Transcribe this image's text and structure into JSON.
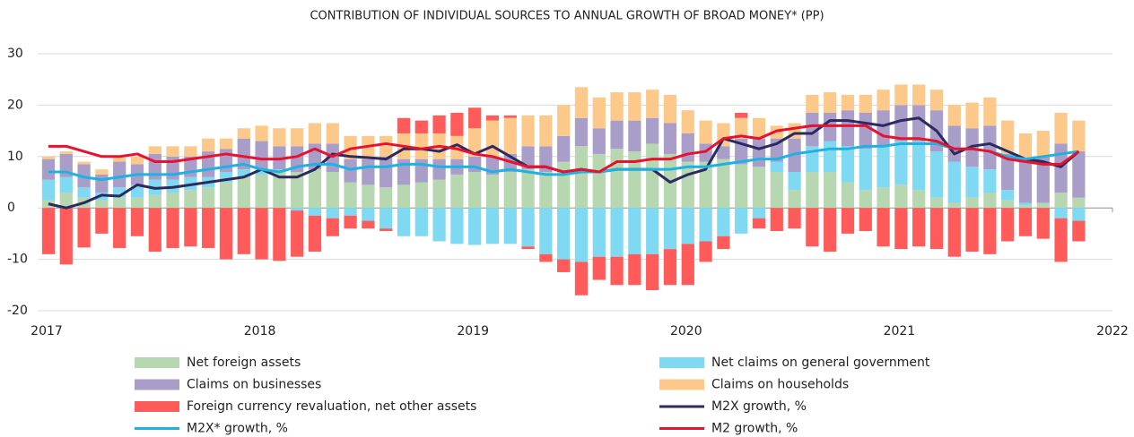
{
  "chart_data": {
    "type": "stacked_bar_line",
    "title": "CONTRIBUTION OF INDIVIDUAL SOURCES TO ANNUAL GROWTH OF BROAD MONEY* (PP)",
    "categories": [
      null,
      null,
      null,
      null,
      null,
      null,
      null,
      null,
      null,
      null,
      null,
      null,
      null,
      null,
      null,
      null,
      null,
      null,
      null,
      null,
      null,
      null,
      null,
      null,
      null,
      null,
      null,
      null,
      null,
      null,
      null,
      null,
      null,
      null,
      null,
      null,
      null,
      null,
      null,
      null,
      null,
      null,
      null,
      null,
      null,
      null,
      null,
      null,
      null,
      null,
      null,
      null,
      null,
      null,
      null,
      null,
      null,
      null,
      null
    ],
    "xlim": [
      2017,
      2022
    ],
    "xticks": [
      2017,
      2018,
      2019,
      2020,
      2021,
      2022
    ],
    "ylim": [
      -20,
      30
    ],
    "yticks": [
      -20,
      -10,
      0,
      10,
      20,
      30
    ],
    "grid": true,
    "series": [
      {
        "name": "Net foreign assets",
        "kind": "bar",
        "color": "#b7d7b1",
        "values": [
          1.5,
          3,
          2,
          1.5,
          2,
          2,
          2.5,
          3,
          3.5,
          4,
          5,
          6,
          6.5,
          7,
          7,
          7.5,
          7,
          5,
          4.5,
          4,
          4.5,
          5,
          5.5,
          6.5,
          7,
          6.5,
          7,
          7.5,
          7,
          9,
          12,
          10.5,
          11.5,
          11,
          12.5,
          10.5,
          9,
          9,
          9.5,
          8.5,
          8,
          7,
          3.5,
          7,
          7,
          5,
          3.5,
          4,
          4.5,
          3.5,
          2,
          1,
          2,
          3,
          1.5,
          0.5,
          1,
          3,
          2
        ]
      },
      {
        "name": "Net claims on general government",
        "kind": "bar",
        "color": "#7fd9f3",
        "values": [
          4,
          3,
          2,
          1.5,
          2,
          2.5,
          3,
          2.5,
          2.5,
          2,
          2,
          1.5,
          1,
          0.5,
          -0.5,
          -1.5,
          -2,
          -1.5,
          -2.5,
          -4,
          -5.5,
          -5.5,
          -6.5,
          -7,
          -7.2,
          -7,
          -7,
          -7.5,
          -9,
          -10,
          -10.5,
          -9.5,
          -9.5,
          -9,
          -9,
          -8,
          -7,
          -6.5,
          -5.5,
          -5,
          -2,
          2,
          3.5,
          5,
          6,
          7,
          8,
          8,
          8.5,
          9.5,
          9,
          8,
          6,
          4.5,
          2,
          0.5,
          0,
          -2,
          -2.5
        ]
      },
      {
        "name": "Claims on businesses",
        "kind": "bar",
        "color": "#a99dc9",
        "values": [
          4,
          4.5,
          4.5,
          3.5,
          5,
          4,
          5,
          4.5,
          4,
          5,
          4.5,
          6,
          5.5,
          4.5,
          5,
          5,
          5.5,
          4.5,
          5,
          6,
          5,
          4.5,
          4,
          3,
          3,
          3.5,
          3.5,
          4.5,
          5,
          5,
          5.5,
          5,
          5.5,
          6,
          5,
          6,
          5.5,
          3.5,
          2.5,
          5,
          5.5,
          4.5,
          6.5,
          6.5,
          5.5,
          7,
          7,
          7,
          7,
          7,
          8,
          7,
          7.5,
          8.5,
          7,
          8.5,
          9,
          9.5,
          9
        ]
      },
      {
        "name": "Claims on households",
        "kind": "bar",
        "color": "#fdc98b",
        "values": [
          0.5,
          0.5,
          0.5,
          1,
          1,
          1.5,
          1.5,
          2,
          2,
          2.5,
          2,
          2,
          3,
          3.5,
          3.5,
          4,
          4,
          4.5,
          4.5,
          4,
          5,
          5,
          5,
          4.5,
          5.5,
          7,
          7,
          6,
          6,
          6,
          6,
          6,
          5.5,
          5.5,
          5.5,
          5.5,
          4.5,
          4.5,
          4.5,
          4,
          4,
          2.5,
          3,
          3.5,
          4,
          3,
          3.5,
          4,
          4,
          4,
          4,
          4,
          5,
          5.5,
          6.5,
          5,
          5,
          6,
          6
        ]
      },
      {
        "name": "Foreign currency revaluation, net other assets",
        "kind": "bar",
        "color": "#ff5b5b",
        "values": [
          -9,
          -11,
          -7.7,
          -5,
          -7.8,
          -5.5,
          -8.5,
          -7.8,
          -7.5,
          -7.8,
          -10,
          -9,
          -10,
          -10.3,
          -9,
          -7,
          -3.5,
          -2.5,
          -1.5,
          -0.5,
          3,
          2.5,
          3.5,
          4.5,
          4,
          1,
          0.5,
          -0.5,
          -1.5,
          -2.5,
          -6.5,
          -4.5,
          -5.5,
          -6,
          -7,
          -7,
          -8,
          -4,
          -2.5,
          1,
          -2,
          -4.5,
          -4,
          -7.5,
          -8.5,
          -5,
          -4.5,
          -7.5,
          -8,
          -7.5,
          -8,
          -9.5,
          -8.5,
          -9,
          -6.5,
          -5.5,
          -6,
          -8.5,
          -4
        ]
      },
      {
        "name": "M2X growth, %",
        "kind": "line",
        "color": "#2c2a5f",
        "values": [
          0.8,
          0,
          1,
          2.5,
          2.3,
          4.5,
          3.8,
          4,
          4.5,
          5,
          5.5,
          6,
          7.5,
          6,
          6,
          7.5,
          10.5,
          10,
          9.8,
          9.5,
          11.5,
          11.5,
          11,
          12.3,
          10.5,
          12,
          10,
          8,
          8,
          7,
          7.5,
          7,
          7.5,
          7.5,
          7.5,
          5,
          6.5,
          7.5,
          13.5,
          12.5,
          11.5,
          12.5,
          14.5,
          14.5,
          17,
          17,
          16.5,
          16,
          17,
          17.5,
          15,
          10.5,
          12,
          12.5,
          11,
          9.5,
          9,
          8,
          11
        ]
      },
      {
        "name": "M2X* growth, %",
        "kind": "line",
        "color": "#1db2e2",
        "values": [
          7,
          7,
          6,
          5.5,
          6,
          6.5,
          6.5,
          6.5,
          7,
          7.5,
          8,
          8.5,
          7.5,
          7,
          8,
          8.5,
          8.5,
          7.5,
          8,
          8,
          8.5,
          8.5,
          8,
          8,
          8,
          7,
          7.5,
          7,
          6.5,
          6.5,
          7,
          7,
          7.5,
          7.5,
          7.5,
          7.5,
          8,
          8,
          8.5,
          9,
          9.5,
          9.5,
          10.5,
          11,
          11.5,
          11.5,
          12,
          12,
          12.5,
          12.5,
          12.5,
          11.5,
          11.5,
          11,
          10,
          9.5,
          10,
          10.5,
          11
        ]
      },
      {
        "name": "M2 growth, %",
        "kind": "line",
        "color": "#e8112f",
        "values": [
          12,
          12,
          11,
          10,
          10,
          10.5,
          9,
          9,
          9.5,
          10,
          10.5,
          10,
          9.5,
          9.5,
          10,
          11.5,
          10,
          11.5,
          12,
          12.5,
          12,
          11.5,
          12,
          11.5,
          10.5,
          10,
          9,
          8,
          8,
          7,
          7.5,
          7,
          9,
          9,
          9.5,
          9.5,
          10.5,
          11,
          13.5,
          14,
          13.5,
          15,
          15.5,
          16,
          16,
          16,
          16,
          14,
          13.5,
          13.5,
          13,
          11.5,
          11.5,
          11,
          9.5,
          9,
          8.5,
          8.5,
          11
        ]
      }
    ]
  }
}
